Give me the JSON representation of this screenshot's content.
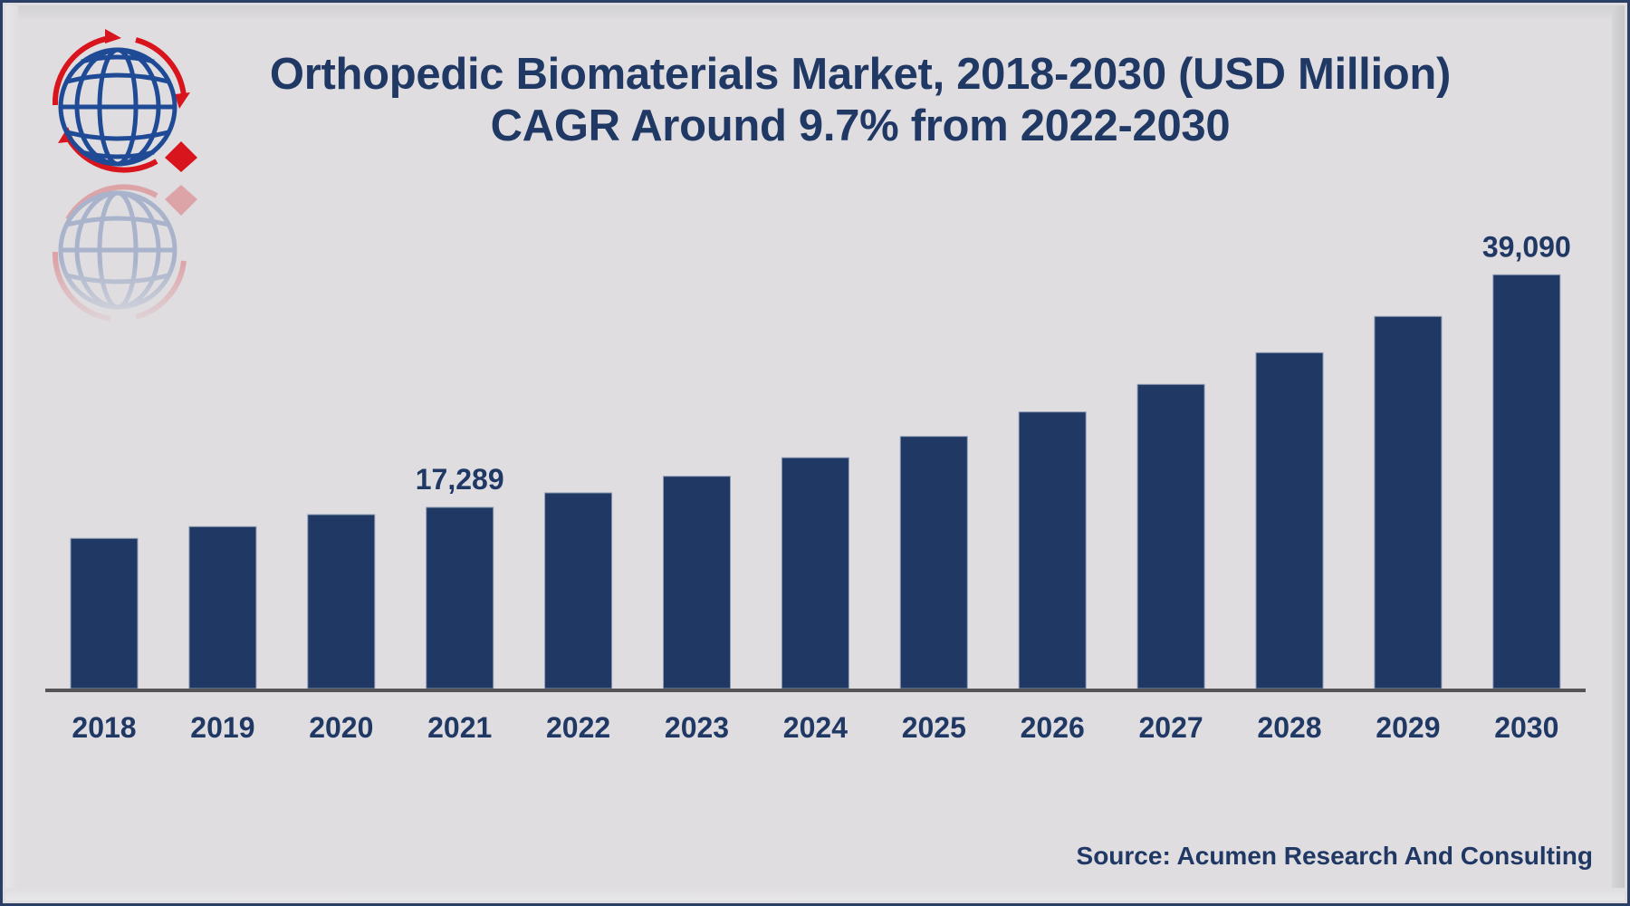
{
  "header": {
    "title_line1": "Orthopedic Biomaterials Market, 2018-2030 (USD Million)",
    "title_line2": "CAGR Around 9.7% from 2022-2030",
    "logo_icon": "globe-with-arrows-icon"
  },
  "footer": {
    "source": "Source: Acumen Research And Consulting"
  },
  "colors": {
    "bar": "#203864",
    "text": "#203864",
    "axis": "#555555",
    "background": "#dfdde0",
    "logo_blue": "#1f4b96",
    "logo_red": "#d8141c"
  },
  "chart_data": {
    "type": "bar",
    "title": "Orthopedic Biomaterials Market, 2018-2030 (USD Million)",
    "subtitle": "CAGR Around 9.7% from 2022-2030",
    "xlabel": "",
    "ylabel": "",
    "categories": [
      "2018",
      "2019",
      "2020",
      "2021",
      "2022",
      "2023",
      "2024",
      "2025",
      "2026",
      "2027",
      "2028",
      "2029",
      "2030"
    ],
    "values": [
      14380,
      15480,
      16610,
      17289,
      18650,
      20200,
      21940,
      23940,
      26230,
      28810,
      31790,
      35180,
      39090
    ],
    "data_labels": [
      {
        "category": "2021",
        "text": "17,289"
      },
      {
        "category": "2030",
        "text": "39,090"
      }
    ],
    "ylim": [
      0,
      45000
    ],
    "grid": false,
    "legend": "none",
    "y_axis_visible": false,
    "source": "Source: Acumen Research And Consulting"
  }
}
